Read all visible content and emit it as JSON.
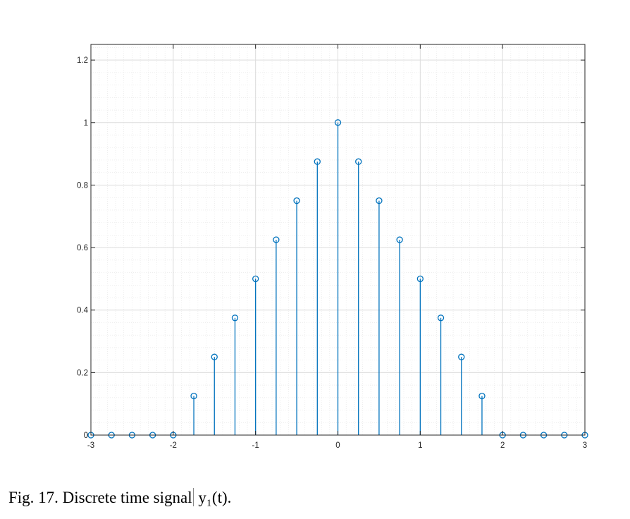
{
  "chart_data": {
    "type": "stem",
    "x": [
      -3,
      -2.75,
      -2.5,
      -2.25,
      -2,
      -1.75,
      -1.5,
      -1.25,
      -1,
      -0.75,
      -0.5,
      -0.25,
      0,
      0.25,
      0.5,
      0.75,
      1,
      1.25,
      1.5,
      1.75,
      2,
      2.25,
      2.5,
      2.75,
      3
    ],
    "y": [
      0,
      0,
      0,
      0,
      0,
      0.125,
      0.25,
      0.375,
      0.5,
      0.625,
      0.75,
      0.875,
      1,
      0.875,
      0.75,
      0.625,
      0.5,
      0.375,
      0.25,
      0.125,
      0,
      0,
      0,
      0,
      0
    ],
    "xlim": [
      -3,
      3
    ],
    "ylim": [
      0,
      1.25
    ],
    "xticks": [
      -3,
      -2,
      -1,
      0,
      1,
      2,
      3
    ],
    "yticks": [
      0,
      0.2,
      0.4,
      0.6,
      0.8,
      1,
      1.2
    ],
    "xtick_labels": [
      "-3",
      "-2",
      "-1",
      "0",
      "1",
      "2",
      "3"
    ],
    "ytick_labels": [
      "0",
      "0.2",
      "0.4",
      "0.6",
      "0.8",
      "1",
      "1.2"
    ],
    "grid": true,
    "minor_grid": true,
    "color": "#0072BD"
  },
  "caption": {
    "before_cursor": "Fig.  17. Discrete time signal",
    "after_cursor": " y₁(t)."
  }
}
